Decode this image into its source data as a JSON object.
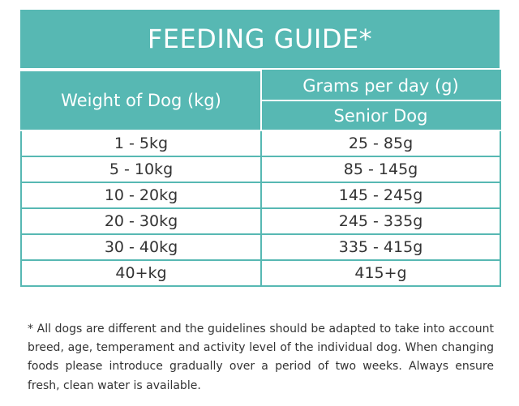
{
  "title": "FEEDING GUIDE*",
  "table": {
    "weight_header": "Weight of Dog (kg)",
    "grams_header": "Grams per day (g)",
    "senior_header": "Senior Dog",
    "rows": [
      {
        "weight": "1 - 5kg",
        "grams": "25 - 85g"
      },
      {
        "weight": "5 - 10kg",
        "grams": "85 - 145g"
      },
      {
        "weight": "10 - 20kg",
        "grams": "145 - 245g"
      },
      {
        "weight": "20 - 30kg",
        "grams": "245 - 335g"
      },
      {
        "weight": "30 - 40kg",
        "grams": "335 - 415g"
      },
      {
        "weight": "40+kg",
        "grams": "415+g"
      }
    ]
  },
  "footnote": "* All dogs are different and the guidelines should be adapted to take into account breed, age, temperament and activity level of the individual dog. When changing foods please introduce gradually over a period of two weeks. Always ensure fresh, clean water is available.",
  "colors": {
    "accent": "#57b8b3",
    "text": "#333333",
    "background": "#ffffff"
  }
}
